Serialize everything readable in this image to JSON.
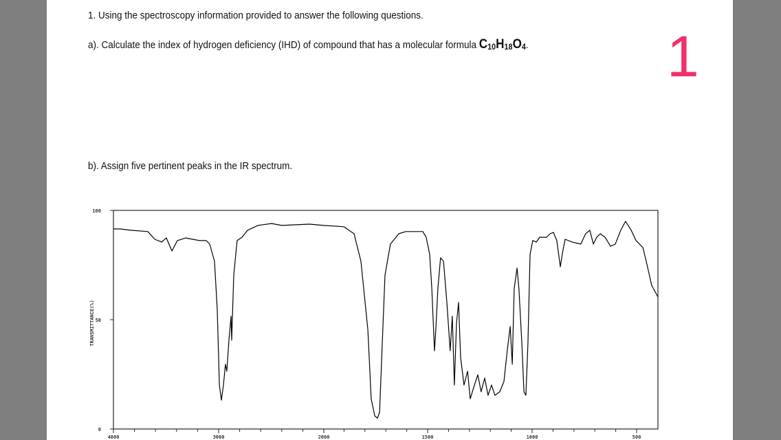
{
  "question": {
    "intro": "1.  Using the spectroscopy information provided to answer the following questions.",
    "part_a": "a).  Calculate the index of hydrogen deficiency (IHD) of compound that has a molecular formula",
    "formula": {
      "c": "C",
      "c_n": "10",
      "h": "H",
      "h_n": "18",
      "o": "O",
      "o_n": "4",
      "end": "."
    },
    "part_b": "b).  Assign five pertinent peaks in the IR spectrum."
  },
  "page_number": "1",
  "colors": {
    "page_number": "#f2306a",
    "background": "#7f7f7f",
    "line": "#000000"
  },
  "chart_data": {
    "type": "line",
    "title": "",
    "xlabel": "",
    "ylabel": "TRANSMITTANCE(%)",
    "xlim": [
      4000,
      400
    ],
    "ylim": [
      0,
      100
    ],
    "x_scale_note": "scale doubles below 2000",
    "x_ticks": [
      "4000",
      "3000",
      "2000",
      "1500",
      "1000",
      "500"
    ],
    "y_ticks": [
      "0",
      "50",
      "100"
    ],
    "grid": false,
    "series": [
      {
        "points": [
          [
            4000,
            91.5
          ],
          [
            3935,
            91.5
          ],
          [
            3837,
            90.9
          ],
          [
            3673,
            90.3
          ],
          [
            3608,
            86.8
          ],
          [
            3542,
            85.5
          ],
          [
            3497,
            87.4
          ],
          [
            3444,
            81.4
          ],
          [
            3392,
            86.2
          ],
          [
            3314,
            87.4
          ],
          [
            3183,
            86.2
          ],
          [
            3118,
            86.2
          ],
          [
            3085,
            84.6
          ],
          [
            3039,
            76.7
          ],
          [
            3013,
            54.7
          ],
          [
            2993,
            20.1
          ],
          [
            2974,
            13.2
          ],
          [
            2954,
            20.1
          ],
          [
            2935,
            29.6
          ],
          [
            2922,
            26.4
          ],
          [
            2902,
            40.6
          ],
          [
            2882,
            51.6
          ],
          [
            2876,
            40.6
          ],
          [
            2856,
            70.4
          ],
          [
            2824,
            86.2
          ],
          [
            2778,
            87.7
          ],
          [
            2725,
            90.9
          ],
          [
            2627,
            93.1
          ],
          [
            2497,
            94.0
          ],
          [
            2399,
            93.1
          ],
          [
            2137,
            93.7
          ],
          [
            2000,
            93.1
          ],
          [
            1901,
            92.5
          ],
          [
            1852,
            89.3
          ],
          [
            1819,
            76.7
          ],
          [
            1786,
            45.3
          ],
          [
            1770,
            13.8
          ],
          [
            1753,
            6.0
          ],
          [
            1740,
            5.0
          ],
          [
            1730,
            7.5
          ],
          [
            1717,
            39.0
          ],
          [
            1704,
            70.4
          ],
          [
            1678,
            84.6
          ],
          [
            1638,
            89.3
          ],
          [
            1605,
            90.3
          ],
          [
            1523,
            90.3
          ],
          [
            1507,
            87.7
          ],
          [
            1490,
            79.9
          ],
          [
            1480,
            64.2
          ],
          [
            1467,
            35.8
          ],
          [
            1461,
            45.3
          ],
          [
            1451,
            64.2
          ],
          [
            1438,
            78.3
          ],
          [
            1424,
            76.7
          ],
          [
            1408,
            57.9
          ],
          [
            1392,
            35.8
          ],
          [
            1382,
            51.6
          ],
          [
            1372,
            20.1
          ],
          [
            1362,
            48.4
          ],
          [
            1352,
            57.9
          ],
          [
            1342,
            32.7
          ],
          [
            1326,
            20.1
          ],
          [
            1309,
            26.4
          ],
          [
            1296,
            13.8
          ],
          [
            1276,
            20.1
          ],
          [
            1260,
            24.8
          ],
          [
            1244,
            17.0
          ],
          [
            1227,
            23.3
          ],
          [
            1211,
            15.4
          ],
          [
            1194,
            20.1
          ],
          [
            1178,
            15.4
          ],
          [
            1155,
            17.0
          ],
          [
            1135,
            21.7
          ],
          [
            1119,
            35.8
          ],
          [
            1105,
            46.9
          ],
          [
            1095,
            29.6
          ],
          [
            1086,
            64.2
          ],
          [
            1072,
            73.6
          ],
          [
            1063,
            64.2
          ],
          [
            1049,
            39.0
          ],
          [
            1039,
            17.0
          ],
          [
            1030,
            15.4
          ],
          [
            1020,
            39.0
          ],
          [
            1010,
            79.9
          ],
          [
            997,
            86.2
          ],
          [
            980,
            85.5
          ],
          [
            964,
            87.7
          ],
          [
            931,
            87.7
          ],
          [
            914,
            89.3
          ],
          [
            898,
            89.9
          ],
          [
            882,
            86.2
          ],
          [
            865,
            74.2
          ],
          [
            855,
            80.5
          ],
          [
            842,
            86.8
          ],
          [
            809,
            85.5
          ],
          [
            767,
            84.6
          ],
          [
            744,
            89.3
          ],
          [
            724,
            90.9
          ],
          [
            707,
            84.6
          ],
          [
            691,
            87.7
          ],
          [
            674,
            89.3
          ],
          [
            651,
            87.7
          ],
          [
            625,
            83.6
          ],
          [
            602,
            84.6
          ],
          [
            576,
            90.9
          ],
          [
            553,
            95.0
          ],
          [
            526,
            90.9
          ],
          [
            503,
            86.2
          ],
          [
            470,
            83.0
          ],
          [
            454,
            76.7
          ],
          [
            428,
            65.7
          ],
          [
            398,
            60.4
          ]
        ]
      }
    ]
  }
}
